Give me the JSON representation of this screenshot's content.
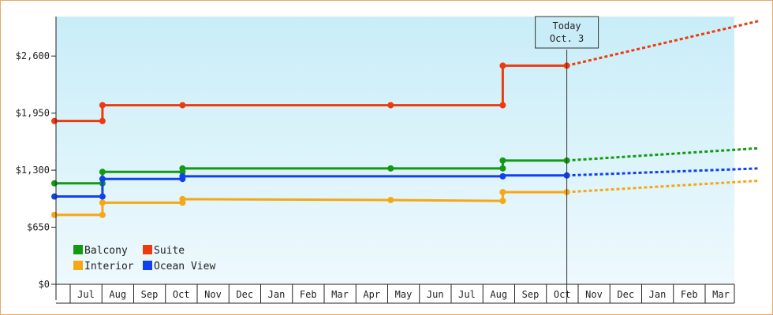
{
  "chart_data": {
    "type": "line",
    "step": true,
    "title": "",
    "xlabel": "",
    "ylabel": "",
    "ylim": [
      0,
      3050
    ],
    "yticks": [
      0,
      650,
      1300,
      1950,
      2600
    ],
    "ytick_labels": [
      "$0",
      "$650",
      "$1,300",
      "$1,950",
      "$2,600"
    ],
    "x_range_months": [
      "Jun",
      "Apr"
    ],
    "month_labels": [
      "Jul",
      "Aug",
      "Sep",
      "Oct",
      "Nov",
      "Dec",
      "Jan",
      "Feb",
      "Mar",
      "Apr",
      "May",
      "Jun",
      "Jul",
      "Aug",
      "Sep",
      "Oct",
      "Nov",
      "Dec",
      "Jan",
      "Feb",
      "Mar"
    ],
    "today_index": 16,
    "today_label": [
      "Today",
      "Oct. 3"
    ],
    "legend_position": "bottom-left",
    "series": [
      {
        "name": "Balcony",
        "color": "#129b12",
        "points": [
          [
            0,
            1150
          ],
          [
            1.5,
            1150
          ],
          [
            1.5,
            1280
          ],
          [
            4,
            1280
          ],
          [
            4,
            1320
          ],
          [
            10.5,
            1320
          ],
          [
            14,
            1320
          ],
          [
            14,
            1410
          ],
          [
            16,
            1410
          ]
        ],
        "markers": [
          [
            0,
            1150
          ],
          [
            1.5,
            1150
          ],
          [
            1.5,
            1280
          ],
          [
            4,
            1280
          ],
          [
            4,
            1320
          ],
          [
            10.5,
            1320
          ],
          [
            14,
            1320
          ],
          [
            14,
            1410
          ],
          [
            16,
            1410
          ]
        ],
        "forecast": [
          [
            16,
            1410
          ],
          [
            22,
            1550
          ]
        ]
      },
      {
        "name": "Suite",
        "color": "#ee3a0c",
        "points": [
          [
            0,
            1860
          ],
          [
            1.5,
            1860
          ],
          [
            1.5,
            2040
          ],
          [
            4,
            2040
          ],
          [
            10.5,
            2040
          ],
          [
            14,
            2040
          ],
          [
            14,
            2490
          ],
          [
            16,
            2490
          ]
        ],
        "markers": [
          [
            0,
            1860
          ],
          [
            1.5,
            1860
          ],
          [
            1.5,
            2040
          ],
          [
            4,
            2040
          ],
          [
            10.5,
            2040
          ],
          [
            14,
            2040
          ],
          [
            14,
            2490
          ],
          [
            16,
            2490
          ]
        ],
        "forecast": [
          [
            16,
            2490
          ],
          [
            22,
            3000
          ]
        ]
      },
      {
        "name": "Interior",
        "color": "#f5a714",
        "points": [
          [
            0,
            790
          ],
          [
            1.5,
            790
          ],
          [
            1.5,
            930
          ],
          [
            4,
            930
          ],
          [
            4,
            970
          ],
          [
            10.5,
            960
          ],
          [
            14,
            950
          ],
          [
            14,
            1050
          ],
          [
            16,
            1050
          ]
        ],
        "markers": [
          [
            0,
            790
          ],
          [
            1.5,
            790
          ],
          [
            1.5,
            930
          ],
          [
            4,
            930
          ],
          [
            4,
            970
          ],
          [
            10.5,
            960
          ],
          [
            14,
            950
          ],
          [
            14,
            1050
          ],
          [
            16,
            1050
          ]
        ],
        "forecast": [
          [
            16,
            1050
          ],
          [
            22,
            1180
          ]
        ]
      },
      {
        "name": "Ocean View",
        "color": "#1040f0",
        "points": [
          [
            0,
            1000
          ],
          [
            1.5,
            1000
          ],
          [
            1.5,
            1200
          ],
          [
            4,
            1200
          ],
          [
            4,
            1230
          ],
          [
            10.5,
            1230
          ],
          [
            14,
            1230
          ],
          [
            14,
            1240
          ],
          [
            16,
            1240
          ]
        ],
        "markers": [
          [
            0,
            1000
          ],
          [
            1.5,
            1000
          ],
          [
            1.5,
            1200
          ],
          [
            4,
            1200
          ],
          [
            4,
            1230
          ],
          [
            14,
            1230
          ],
          [
            16,
            1240
          ]
        ],
        "forecast": [
          [
            16,
            1240
          ],
          [
            22,
            1320
          ]
        ]
      }
    ]
  }
}
